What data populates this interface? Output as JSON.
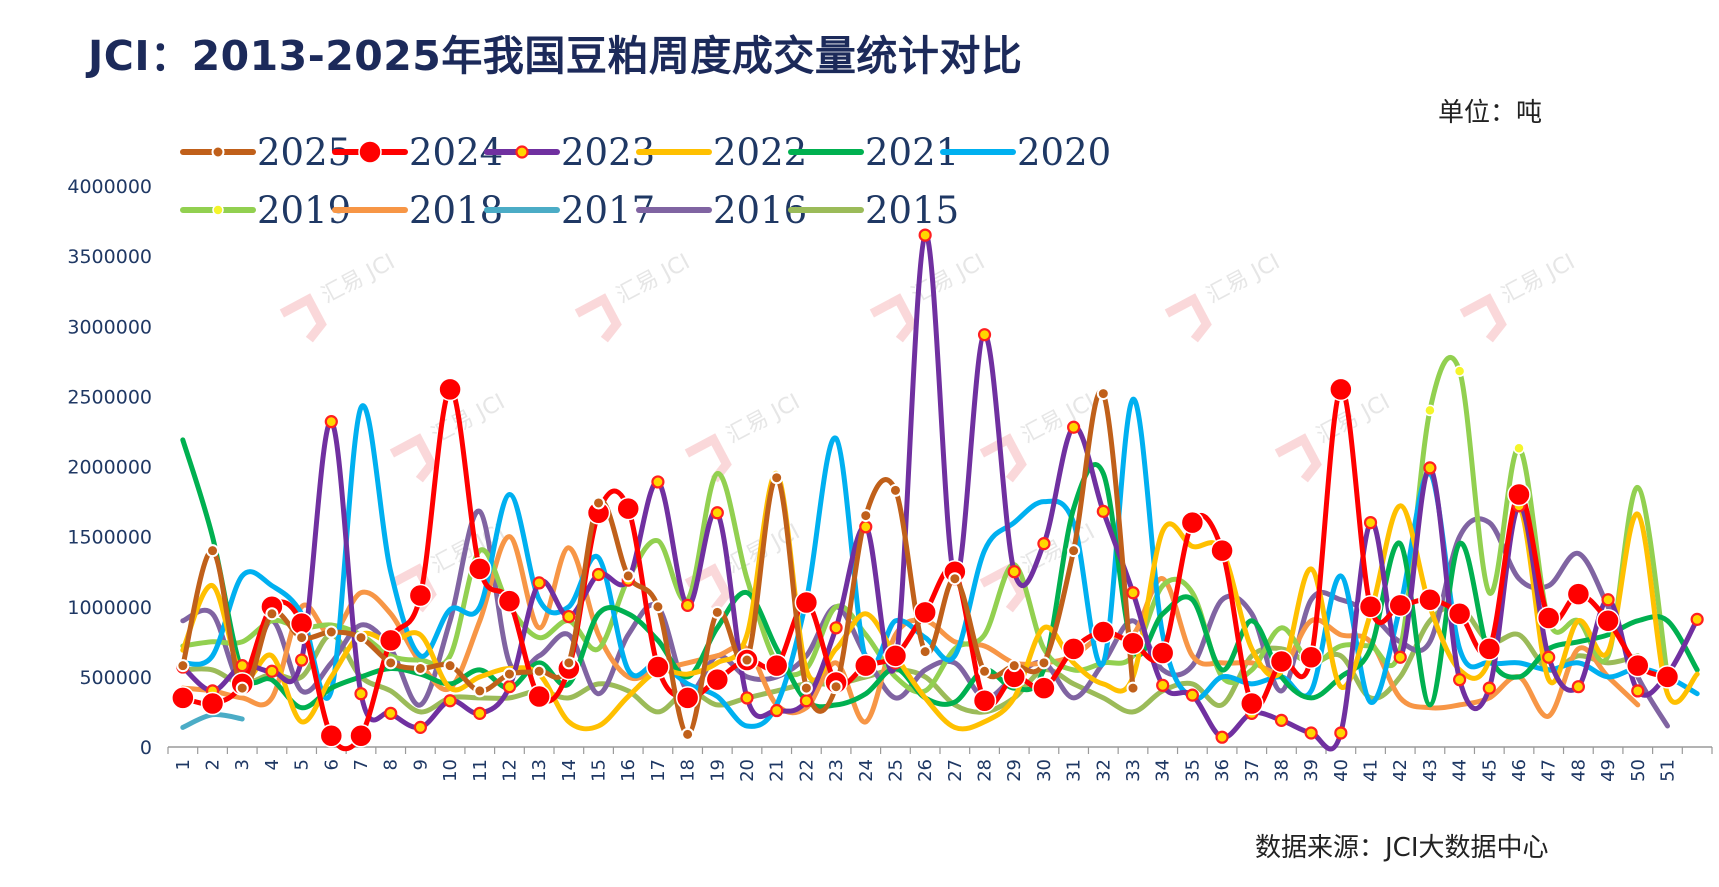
{
  "header": {
    "title": "JCI：2013-2025年我国豆粕周度成交量统计对比",
    "unit": "单位：吨"
  },
  "footer": {
    "source": "数据来源：JCI大数据中心"
  },
  "watermark": "汇易 JCI",
  "chart_data": {
    "type": "line",
    "title": "JCI：2013-2025年我国豆粕周度成交量统计对比",
    "xlabel": "",
    "ylabel": "",
    "unit": "单位：吨",
    "ylim": [
      0,
      4000000
    ],
    "yticks": [
      0,
      500000,
      1000000,
      1500000,
      2000000,
      2500000,
      3000000,
      3500000,
      4000000
    ],
    "ytick_labels": [
      "0",
      "500000",
      "1000000",
      "1500000",
      "2000000",
      "2500000",
      "3000000",
      "3500000",
      "4000000"
    ],
    "x": [
      1,
      2,
      3,
      4,
      5,
      6,
      7,
      8,
      9,
      10,
      11,
      12,
      13,
      14,
      15,
      16,
      17,
      18,
      19,
      20,
      21,
      22,
      23,
      24,
      25,
      26,
      27,
      28,
      29,
      30,
      31,
      32,
      33,
      34,
      35,
      36,
      37,
      38,
      39,
      40,
      41,
      42,
      43,
      44,
      45,
      46,
      47,
      48,
      49,
      50,
      51,
      52
    ],
    "xtick_labels": [
      "1",
      "2",
      "3",
      "4",
      "5",
      "6",
      "7",
      "8",
      "9",
      "10",
      "11",
      "12",
      "13",
      "14",
      "15",
      "16",
      "17",
      "18",
      "19",
      "20",
      "21",
      "22",
      "23",
      "24",
      "25",
      "26",
      "27",
      "28",
      "29",
      "30",
      "31",
      "32",
      "33",
      "34",
      "35",
      "36",
      "37",
      "38",
      "39",
      "40",
      "41",
      "42",
      "43",
      "44",
      "45",
      "46",
      "47",
      "48",
      "49",
      "50",
      "51",
      ""
    ],
    "legend_position": "top-left",
    "grid": false,
    "series": [
      {
        "name": "2025",
        "color": "#c0601a",
        "width": 5,
        "marker": "small-dot",
        "values": [
          580000,
          1400000,
          420000,
          950000,
          780000,
          820000,
          780000,
          600000,
          560000,
          580000,
          400000,
          520000,
          540000,
          600000,
          1740000,
          1220000,
          1000000,
          90000,
          960000,
          620000,
          1920000,
          420000,
          430000,
          1650000,
          1830000,
          680000,
          1200000,
          540000,
          580000,
          600000,
          1400000,
          2520000,
          420000,
          null,
          null,
          null,
          null,
          null,
          null,
          null,
          null,
          null,
          null,
          null,
          null,
          null,
          null,
          null,
          null,
          null,
          null,
          null
        ]
      },
      {
        "name": "2024",
        "color": "#ff0000",
        "width": 5,
        "marker": "big-dot",
        "values": [
          350000,
          310000,
          450000,
          1000000,
          880000,
          80000,
          80000,
          760000,
          1080000,
          2550000,
          1270000,
          1040000,
          360000,
          560000,
          1670000,
          1700000,
          570000,
          350000,
          480000,
          620000,
          580000,
          1030000,
          460000,
          580000,
          650000,
          960000,
          1250000,
          330000,
          500000,
          420000,
          700000,
          820000,
          740000,
          670000,
          1600000,
          1400000,
          310000,
          610000,
          640000,
          2550000,
          1000000,
          1010000,
          1050000,
          950000,
          700000,
          1800000,
          920000,
          1090000,
          900000,
          580000,
          500000,
          null
        ]
      },
      {
        "name": "2023",
        "color": "#7030a0",
        "width": 5,
        "marker": "ring",
        "values": [
          570000,
          400000,
          580000,
          540000,
          620000,
          2320000,
          380000,
          240000,
          140000,
          330000,
          240000,
          430000,
          1170000,
          930000,
          1230000,
          1190000,
          1890000,
          1010000,
          1670000,
          350000,
          260000,
          330000,
          850000,
          1570000,
          600000,
          3650000,
          1200000,
          2940000,
          1250000,
          1450000,
          2280000,
          1680000,
          1100000,
          440000,
          370000,
          70000,
          240000,
          190000,
          100000,
          100000,
          1600000,
          640000,
          1990000,
          480000,
          420000,
          1720000,
          640000,
          430000,
          1050000,
          400000,
          520000,
          910000
        ]
      },
      {
        "name": "2022",
        "color": "#ffc000",
        "width": 5,
        "marker": "none",
        "values": [
          690000,
          1150000,
          500000,
          650000,
          180000,
          500000,
          800000,
          750000,
          800000,
          420000,
          500000,
          560000,
          520000,
          180000,
          150000,
          360000,
          540000,
          520000,
          600000,
          800000,
          1950000,
          550000,
          700000,
          950000,
          650000,
          350000,
          140000,
          180000,
          350000,
          850000,
          600000,
          450000,
          500000,
          1540000,
          1430000,
          1400000,
          700000,
          540000,
          1270000,
          430000,
          950000,
          1720000,
          1000000,
          550000,
          620000,
          1700000,
          480000,
          900000,
          680000,
          1660000,
          380000,
          520000
        ]
      },
      {
        "name": "2021",
        "color": "#00b050",
        "width": 5,
        "marker": "none",
        "values": [
          2190000,
          1500000,
          540000,
          480000,
          280000,
          420000,
          500000,
          560000,
          520000,
          450000,
          550000,
          420000,
          600000,
          450000,
          950000,
          950000,
          760000,
          500000,
          850000,
          1100000,
          700000,
          330000,
          300000,
          380000,
          560000,
          350000,
          320000,
          550000,
          420000,
          560000,
          1700000,
          1950000,
          700000,
          950000,
          1050000,
          550000,
          900000,
          500000,
          350000,
          500000,
          700000,
          1450000,
          300000,
          1450000,
          650000,
          500000,
          700000,
          750000,
          800000,
          900000,
          900000,
          550000
        ]
      },
      {
        "name": "2020",
        "color": "#00b0f0",
        "width": 5,
        "marker": "none",
        "values": [
          600000,
          650000,
          1220000,
          1150000,
          950000,
          400000,
          2420000,
          1250000,
          650000,
          980000,
          1000000,
          1800000,
          1050000,
          1000000,
          1350000,
          550000,
          600000,
          450000,
          360000,
          150000,
          300000,
          1050000,
          2200000,
          620000,
          900000,
          780000,
          650000,
          1400000,
          1600000,
          1750000,
          1600000,
          600000,
          2480000,
          800000,
          350000,
          500000,
          450000,
          500000,
          400000,
          1220000,
          320000,
          1000000,
          1950000,
          700000,
          600000,
          600000,
          550000,
          600000,
          500000,
          560000,
          500000,
          380000
        ]
      },
      {
        "name": "2019",
        "color": "#92d050",
        "width": 5,
        "marker": "ring-yellow",
        "values": [
          720000,
          750000,
          750000,
          900000,
          850000,
          870000,
          800000,
          650000,
          620000,
          650000,
          1400000,
          1000000,
          780000,
          900000,
          700000,
          1200000,
          1470000,
          1050000,
          1950000,
          1200000,
          600000,
          560000,
          1000000,
          800000,
          500000,
          400000,
          700000,
          800000,
          1300000,
          700000,
          550000,
          600000,
          650000,
          1150000,
          1100000,
          500000,
          550000,
          850000,
          600000,
          720000,
          720000,
          700000,
          2400000,
          2680000,
          1100000,
          2130000,
          900000,
          900000,
          650000,
          1850000,
          500000,
          null
        ]
      },
      {
        "name": "2018",
        "color": "#f79646",
        "width": 5,
        "marker": "none",
        "values": [
          420000,
          400000,
          350000,
          350000,
          1000000,
          800000,
          1100000,
          950000,
          600000,
          420000,
          900000,
          1500000,
          850000,
          1420000,
          800000,
          500000,
          550000,
          600000,
          650000,
          700000,
          300000,
          280000,
          600000,
          180000,
          800000,
          900000,
          750000,
          720000,
          600000,
          600000,
          650000,
          800000,
          800000,
          1200000,
          650000,
          600000,
          600000,
          550000,
          900000,
          800000,
          750000,
          350000,
          280000,
          300000,
          350000,
          500000,
          220000,
          700000,
          500000,
          300000,
          null,
          null
        ]
      },
      {
        "name": "2017",
        "color": "#4bacc6",
        "width": 5,
        "marker": "none",
        "values": [
          140000,
          230000,
          200000,
          null,
          null,
          null,
          null,
          null,
          null,
          null,
          null,
          null,
          null,
          null,
          null,
          null,
          null,
          null,
          null,
          null,
          null,
          null,
          null,
          null,
          null,
          null,
          null,
          null,
          null,
          null,
          null,
          null,
          null,
          null,
          null,
          null,
          null,
          null,
          null,
          null,
          null,
          null,
          null,
          null,
          null,
          null,
          null,
          null,
          null,
          null,
          null,
          null
        ]
      },
      {
        "name": "2016",
        "color": "#8064a2",
        "width": 5,
        "marker": "none",
        "values": [
          900000,
          950000,
          450000,
          900000,
          400000,
          600000,
          870000,
          700000,
          300000,
          900000,
          1680000,
          600000,
          650000,
          800000,
          380000,
          800000,
          1000000,
          400000,
          650000,
          500000,
          500000,
          650000,
          1000000,
          650000,
          350000,
          550000,
          600000,
          350000,
          500000,
          600000,
          350000,
          600000,
          900000,
          550000,
          580000,
          1050000,
          950000,
          400000,
          1050000,
          1050000,
          950000,
          750000,
          750000,
          1500000,
          1600000,
          1200000,
          1150000,
          1380000,
          1000000,
          500000,
          150000,
          null
        ]
      },
      {
        "name": "2015",
        "color": "#9bbb59",
        "width": 5,
        "marker": "none",
        "values": [
          550000,
          550000,
          450000,
          520000,
          500000,
          800000,
          500000,
          400000,
          250000,
          350000,
          350000,
          350000,
          400000,
          350000,
          450000,
          400000,
          250000,
          400000,
          300000,
          350000,
          400000,
          450000,
          450000,
          500000,
          550000,
          500000,
          300000,
          250000,
          350000,
          550000,
          450000,
          350000,
          250000,
          400000,
          450000,
          300000,
          650000,
          700000,
          600000,
          650000,
          350000,
          500000,
          900000,
          1000000,
          750000,
          800000,
          550000,
          650000,
          600000,
          650000,
          null,
          null
        ]
      }
    ]
  }
}
